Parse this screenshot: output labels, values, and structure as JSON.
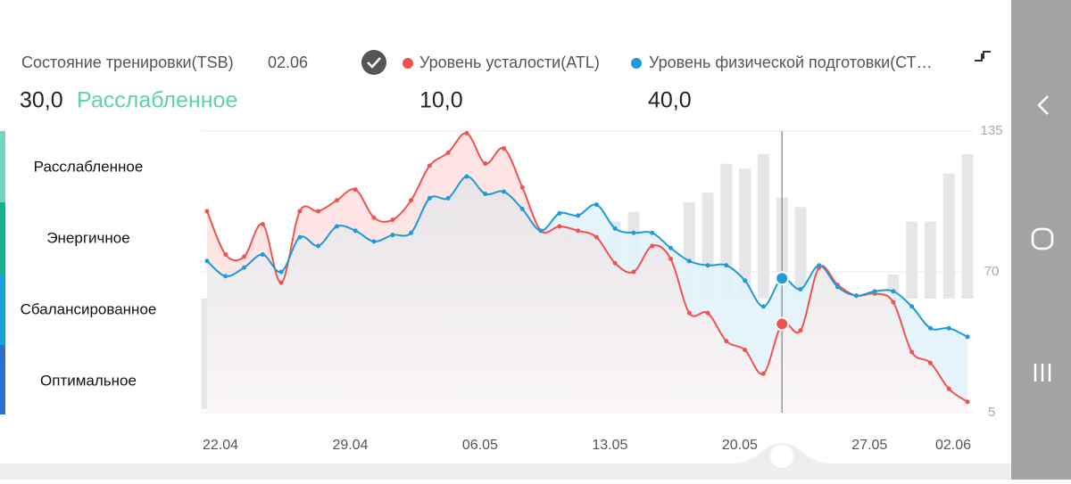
{
  "header": {
    "title": "Состояние тренировки(TSB)",
    "date": "02.06",
    "tsb_value": "30,0",
    "tsb_state": "Расслабленное",
    "atl_value": "10,0",
    "ctl_value": "40,0"
  },
  "zones": [
    "Расслабленное",
    "Энергичное",
    "Сбалансированное",
    "Оптимальное"
  ],
  "chart_data": {
    "type": "line",
    "categories": [
      "22.04",
      null,
      null,
      null,
      null,
      null,
      null,
      "29.04",
      null,
      null,
      null,
      null,
      null,
      null,
      "06.05",
      null,
      null,
      null,
      null,
      null,
      null,
      "13.05",
      null,
      null,
      null,
      null,
      null,
      null,
      "20.05",
      null,
      null,
      null,
      null,
      null,
      null,
      "27.05",
      null,
      null,
      null,
      null,
      null,
      "02.06"
    ],
    "series": [
      {
        "name": "Уровень усталости(ATL)",
        "color": "#ef5350",
        "values": [
          98,
          78,
          77,
          92,
          65,
          98,
          98,
          103,
          108,
          95,
          94,
          103,
          119,
          125,
          134,
          120,
          127,
          109,
          89,
          91,
          89,
          86,
          74,
          70,
          82,
          76,
          51,
          51,
          38,
          34,
          23,
          46,
          43,
          72,
          64,
          59,
          60,
          56,
          33,
          28,
          16,
          10
        ]
      },
      {
        "name": "Уровень физической подготовки(СТ…",
        "color": "#1e9ad6",
        "values": [
          75,
          68,
          72,
          78,
          70,
          86,
          82,
          91,
          89,
          84,
          87,
          88,
          104,
          104,
          114,
          106,
          107,
          99,
          89,
          97,
          96,
          101,
          90,
          88,
          88,
          81,
          75,
          73,
          73,
          66,
          54,
          67,
          62,
          73,
          63,
          59,
          61,
          61,
          54,
          44,
          44,
          40
        ]
      },
      {
        "name": "Состояние тренировки(TSB)",
        "color": "#e6e6e8",
        "axis": "y2",
        "values": [
          -23,
          -10,
          -5,
          -14,
          5,
          -12,
          -16,
          -12,
          -19,
          -11,
          -7,
          -15,
          -15,
          -21,
          -20,
          -14,
          -20,
          -10,
          0,
          6,
          7,
          15,
          16,
          18,
          6,
          5,
          20,
          22,
          28,
          27,
          30,
          21,
          19,
          1,
          -1,
          0,
          1,
          5,
          16,
          16,
          26,
          30
        ]
      }
    ],
    "ylim": [
      5,
      135
    ],
    "yticks": [
      135,
      70,
      5
    ],
    "y2lim": [
      -23.7,
      34.8
    ],
    "grid": true
  }
}
